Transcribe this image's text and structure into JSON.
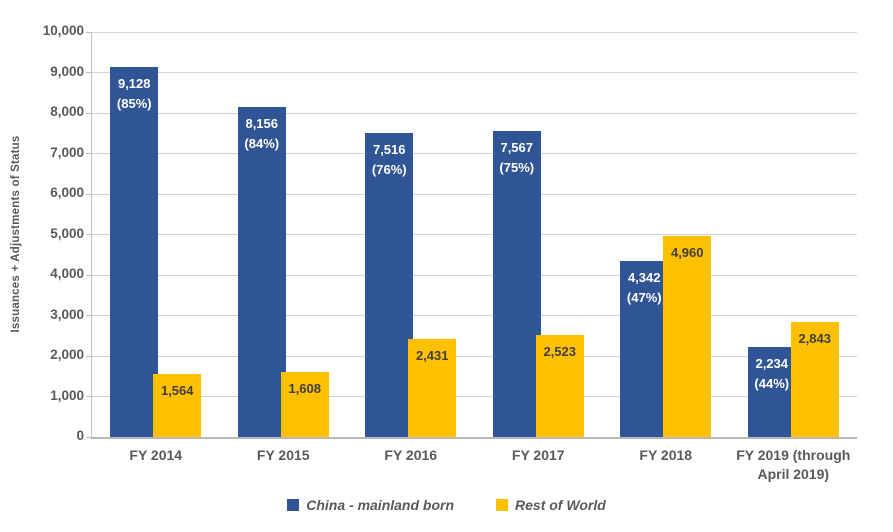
{
  "chart_data": {
    "type": "bar",
    "categories": [
      "FY 2014",
      "FY 2015",
      "FY 2016",
      "FY 2017",
      "FY 2018",
      "FY 2019 (through April 2019)"
    ],
    "series": [
      {
        "name": "China - mainland born",
        "color": "#2F5594",
        "label_color": "#FFFFFF",
        "values": [
          9128,
          8156,
          7516,
          7567,
          4342,
          2234
        ],
        "value_labels": [
          "9,128",
          "8,156",
          "7,516",
          "7,567",
          "4,342",
          "2,234"
        ],
        "pct_labels": [
          "(85%)",
          "(84%)",
          "(76%)",
          "(75%)",
          "(47%)",
          "(44%)"
        ]
      },
      {
        "name": "Rest of World",
        "color": "#FFC000",
        "label_color": "#404040",
        "values": [
          1564,
          1608,
          2431,
          2523,
          4960,
          2843
        ],
        "value_labels": [
          "1,564",
          "1,608",
          "2,431",
          "2,523",
          "4,960",
          "2,843"
        ],
        "pct_labels": [
          "",
          "",
          "",
          "",
          "",
          ""
        ]
      }
    ],
    "ylabel": "Issuances  + Adjustments of Status",
    "xlabel": "",
    "title": "",
    "ylim": [
      0,
      10000
    ],
    "ytick_step": 1000,
    "ytick_labels": [
      "0",
      "1,000",
      "2,000",
      "3,000",
      "4,000",
      "5,000",
      "6,000",
      "7,000",
      "8,000",
      "9,000",
      "10,000"
    ],
    "grid": true,
    "legend_position": "bottom"
  },
  "colors": {
    "grid": "#D2D2D2",
    "axis": "#BFBFBF",
    "tick_text": "#595959",
    "category_text": "#595959",
    "legend_text": "#595959",
    "background": "#FFFFFF"
  }
}
